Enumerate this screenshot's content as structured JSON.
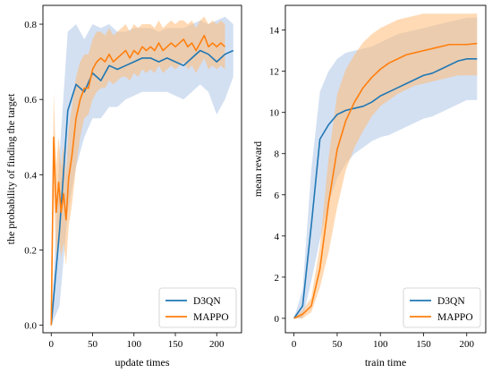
{
  "chart_data": [
    {
      "type": "line",
      "xlabel": "update times",
      "ylabel": "the probability of finding the target",
      "xlim": [
        -10,
        230
      ],
      "ylim": [
        -0.02,
        0.85
      ],
      "xticks": [
        "0",
        "50",
        "100",
        "150",
        "200"
      ],
      "yticks": [
        "0.0",
        "0.2",
        "0.4",
        "0.6",
        "0.8"
      ],
      "legend_position": "lower-right",
      "grid": false,
      "series": [
        {
          "name": "D3QN",
          "color": "#1f77b4",
          "band_color": "#aec7e8",
          "x": [
            0,
            10,
            20,
            30,
            40,
            50,
            60,
            70,
            80,
            90,
            100,
            110,
            120,
            130,
            140,
            150,
            160,
            170,
            180,
            190,
            200,
            210,
            220
          ],
          "y": [
            0.0,
            0.25,
            0.57,
            0.64,
            0.62,
            0.67,
            0.65,
            0.69,
            0.68,
            0.69,
            0.7,
            0.71,
            0.71,
            0.7,
            0.71,
            0.7,
            0.69,
            0.71,
            0.73,
            0.72,
            0.7,
            0.72,
            0.73
          ],
          "lower": [
            0.0,
            0.05,
            0.3,
            0.42,
            0.5,
            0.55,
            0.55,
            0.58,
            0.58,
            0.6,
            0.61,
            0.62,
            0.62,
            0.62,
            0.62,
            0.61,
            0.6,
            0.62,
            0.64,
            0.62,
            0.56,
            0.6,
            0.66
          ],
          "upper": [
            0.0,
            0.45,
            0.78,
            0.8,
            0.76,
            0.8,
            0.79,
            0.8,
            0.78,
            0.78,
            0.79,
            0.79,
            0.79,
            0.78,
            0.79,
            0.79,
            0.79,
            0.8,
            0.81,
            0.8,
            0.81,
            0.82,
            0.8
          ]
        },
        {
          "name": "MAPPO",
          "color": "#ff7f0e",
          "band_color": "#ffbb78",
          "x": [
            0,
            3,
            6,
            9,
            12,
            15,
            18,
            21,
            25,
            30,
            35,
            40,
            45,
            50,
            55,
            60,
            65,
            70,
            75,
            80,
            85,
            90,
            95,
            100,
            105,
            110,
            115,
            120,
            125,
            130,
            135,
            140,
            145,
            150,
            155,
            160,
            165,
            170,
            175,
            180,
            185,
            190,
            195,
            200,
            205,
            210
          ],
          "y": [
            0.0,
            0.5,
            0.3,
            0.38,
            0.3,
            0.35,
            0.28,
            0.39,
            0.45,
            0.55,
            0.6,
            0.63,
            0.63,
            0.68,
            0.7,
            0.71,
            0.7,
            0.72,
            0.7,
            0.71,
            0.72,
            0.73,
            0.71,
            0.73,
            0.72,
            0.74,
            0.73,
            0.74,
            0.73,
            0.75,
            0.73,
            0.74,
            0.75,
            0.74,
            0.75,
            0.76,
            0.74,
            0.75,
            0.73,
            0.75,
            0.77,
            0.74,
            0.75,
            0.74,
            0.75,
            0.74
          ],
          "lower": [
            0.0,
            0.35,
            0.18,
            0.24,
            0.18,
            0.22,
            0.16,
            0.26,
            0.32,
            0.42,
            0.5,
            0.55,
            0.56,
            0.6,
            0.62,
            0.63,
            0.63,
            0.65,
            0.64,
            0.65,
            0.66,
            0.66,
            0.65,
            0.67,
            0.66,
            0.68,
            0.67,
            0.68,
            0.67,
            0.69,
            0.67,
            0.68,
            0.69,
            0.68,
            0.69,
            0.7,
            0.68,
            0.69,
            0.67,
            0.69,
            0.71,
            0.68,
            0.69,
            0.68,
            0.69,
            0.68
          ],
          "upper": [
            0.0,
            0.62,
            0.42,
            0.5,
            0.42,
            0.48,
            0.4,
            0.52,
            0.58,
            0.66,
            0.7,
            0.72,
            0.72,
            0.76,
            0.78,
            0.78,
            0.77,
            0.79,
            0.77,
            0.78,
            0.79,
            0.8,
            0.78,
            0.8,
            0.79,
            0.8,
            0.8,
            0.8,
            0.79,
            0.81,
            0.79,
            0.8,
            0.81,
            0.8,
            0.81,
            0.81,
            0.8,
            0.81,
            0.79,
            0.81,
            0.82,
            0.8,
            0.81,
            0.8,
            0.81,
            0.8
          ]
        }
      ]
    },
    {
      "type": "line",
      "xlabel": "train time",
      "ylabel": "mean reward",
      "xlim": [
        -10,
        222
      ],
      "ylim": [
        -0.7,
        15.2
      ],
      "xticks": [
        "0",
        "50",
        "100",
        "150",
        "200"
      ],
      "yticks": [
        "0",
        "2",
        "4",
        "6",
        "8",
        "10",
        "12",
        "14"
      ],
      "legend_position": "lower-right",
      "grid": false,
      "series": [
        {
          "name": "D3QN",
          "color": "#1f77b4",
          "band_color": "#aec7e8",
          "x": [
            0,
            10,
            20,
            30,
            40,
            50,
            60,
            70,
            80,
            90,
            100,
            110,
            120,
            130,
            140,
            150,
            160,
            170,
            180,
            190,
            200,
            212
          ],
          "y": [
            0.0,
            0.6,
            4.5,
            8.7,
            9.4,
            9.9,
            10.1,
            10.2,
            10.3,
            10.5,
            10.8,
            11.0,
            11.2,
            11.4,
            11.6,
            11.8,
            11.9,
            12.1,
            12.3,
            12.5,
            12.6,
            12.6
          ],
          "lower": [
            0.0,
            0.0,
            1.8,
            3.8,
            5.6,
            6.8,
            7.5,
            8.0,
            8.3,
            8.6,
            8.8,
            8.9,
            9.1,
            9.3,
            9.5,
            9.7,
            9.8,
            10.0,
            10.2,
            10.4,
            10.6,
            10.6
          ],
          "upper": [
            0.0,
            1.4,
            7.2,
            11.0,
            12.0,
            12.6,
            12.9,
            13.0,
            13.1,
            13.2,
            13.4,
            13.6,
            13.8,
            13.9,
            14.0,
            14.1,
            14.2,
            14.3,
            14.4,
            14.5,
            14.6,
            14.6
          ]
        },
        {
          "name": "MAPPO",
          "color": "#ff7f0e",
          "band_color": "#ffbb78",
          "x": [
            0,
            10,
            20,
            30,
            40,
            50,
            60,
            70,
            80,
            90,
            100,
            110,
            120,
            130,
            140,
            150,
            160,
            170,
            180,
            190,
            200,
            212
          ],
          "y": [
            0.0,
            0.2,
            0.6,
            2.4,
            5.6,
            8.2,
            9.6,
            10.5,
            11.2,
            11.7,
            12.1,
            12.4,
            12.6,
            12.8,
            12.9,
            13.0,
            13.1,
            13.2,
            13.3,
            13.3,
            13.3,
            13.35
          ],
          "lower": [
            0.0,
            0.0,
            0.3,
            1.5,
            3.2,
            5.4,
            7.2,
            8.3,
            9.1,
            9.8,
            10.3,
            10.6,
            10.9,
            11.1,
            11.3,
            11.4,
            11.5,
            11.6,
            11.7,
            11.8,
            11.8,
            11.8
          ],
          "upper": [
            0.0,
            0.4,
            1.0,
            3.5,
            7.8,
            10.9,
            12.1,
            12.8,
            13.4,
            13.8,
            14.1,
            14.3,
            14.5,
            14.6,
            14.7,
            14.8,
            14.8,
            14.8,
            14.8,
            14.8,
            14.8,
            14.8
          ]
        }
      ]
    }
  ]
}
